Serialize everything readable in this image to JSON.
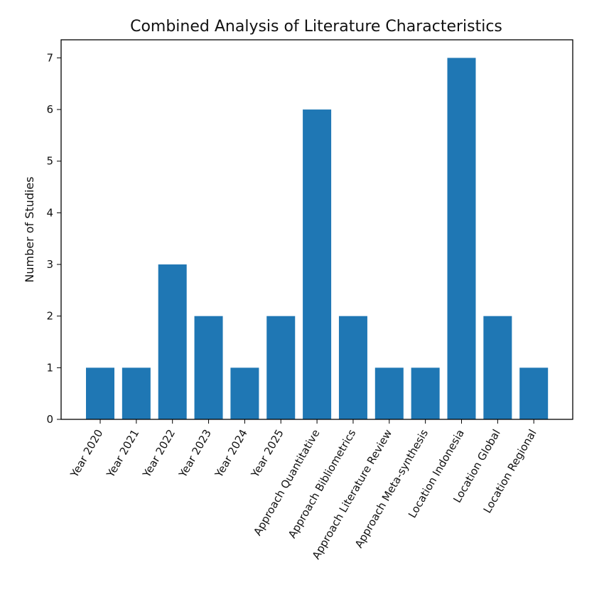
{
  "chart_data": {
    "type": "bar",
    "title": "Combined Analysis of Literature Characteristics",
    "xlabel": "",
    "ylabel": "Number of Studies",
    "ylim": [
      0,
      7.35
    ],
    "yticks": [
      0,
      1,
      2,
      3,
      4,
      5,
      6,
      7
    ],
    "grid": false,
    "legend": "none",
    "categories": [
      "Year 2020",
      "Year 2021",
      "Year 2022",
      "Year 2023",
      "Year 2024",
      "Year 2025",
      "Approach Quantitative",
      "Approach Bibliometrics",
      "Approach Literature Review",
      "Approach Meta-synthesis",
      "Location Indonesia",
      "Location Global",
      "Location Regional"
    ],
    "values": [
      1,
      1,
      3,
      2,
      1,
      2,
      6,
      2,
      1,
      1,
      7,
      2,
      1
    ],
    "colors": {
      "bar": "#1f77b4",
      "axis": "#000000",
      "text": "#111111",
      "background": "#ffffff"
    }
  }
}
